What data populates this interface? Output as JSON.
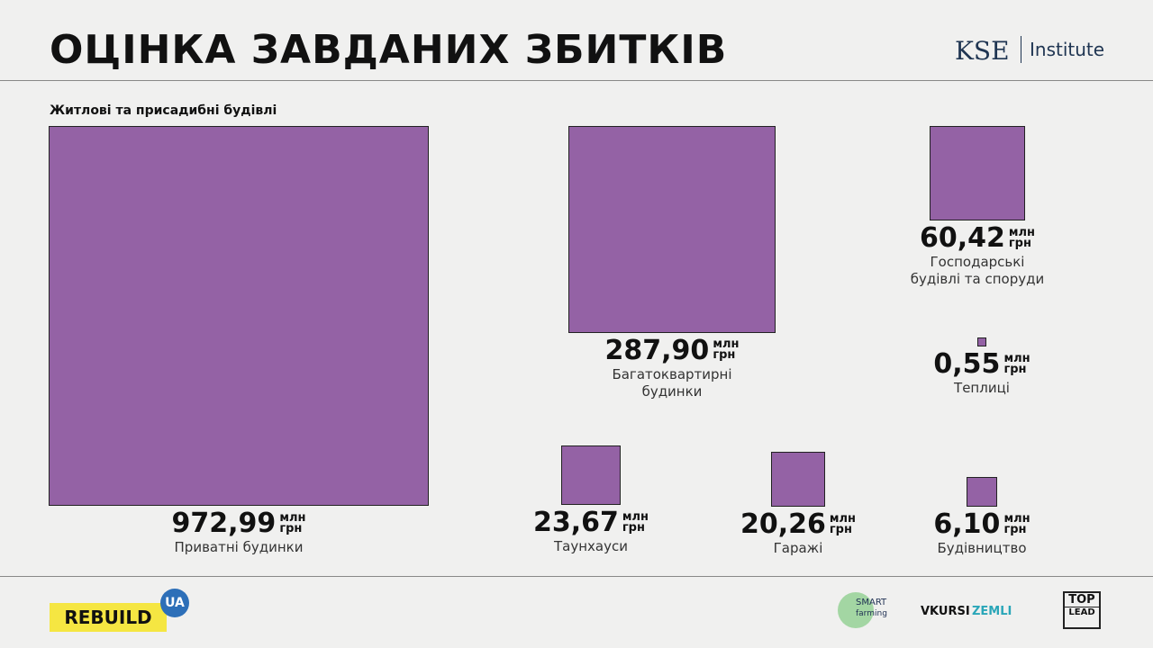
{
  "chart_data": {
    "type": "square-area",
    "title": "ОЦІНКА ЗАВДАНИХ ЗБИТКІВ",
    "subtitle": "Житлові та присадибні будівлі",
    "categories": [
      "Приватні будинки",
      "Багатоквартирні будинки",
      "Господарські будівлі та споруди",
      "Теплиці",
      "Таунхауси",
      "Гаражі",
      "Будівництво"
    ],
    "values": [
      972.99,
      287.9,
      60.42,
      0.55,
      23.67,
      20.26,
      6.1
    ],
    "value_labels": [
      "972,99",
      "287,90",
      "60,42",
      "0,55",
      "23,67",
      "20,26",
      "6,10"
    ],
    "unit": [
      "млн",
      "грн"
    ],
    "color": "#9462a5"
  },
  "brand": {
    "kse": "KSE",
    "institute": "Institute",
    "rebuild": "REBUILD",
    "ua": "UA",
    "smart": "SMART",
    "farming": "farming",
    "vkursi": "VKURSI",
    "zemli": "ZEMLI",
    "top": "TOP",
    "lead": "LEAD"
  }
}
